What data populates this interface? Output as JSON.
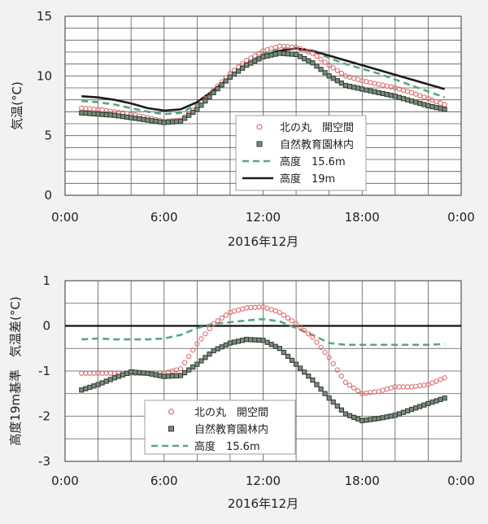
{
  "chart_data": [
    {
      "type": "line",
      "title": "",
      "xlabel": "2016年12月",
      "ylabel": "気温(°C)",
      "xlim": [
        0,
        24
      ],
      "ylim": [
        0,
        15
      ],
      "x_ticks": [
        "0:00",
        "6:00",
        "12:00",
        "18:00",
        "0:00"
      ],
      "y_ticks": [
        "0",
        "5",
        "10",
        "15"
      ],
      "grid": true,
      "legend_position": "center-right",
      "series": [
        {
          "name": "北の丸　開空間",
          "style": "markers-circle",
          "color": "#e06b6b",
          "x": [
            1,
            2,
            3,
            4,
            5,
            6,
            7,
            8,
            9,
            10,
            11,
            12,
            13,
            14,
            15,
            16,
            17,
            18,
            19,
            20,
            21,
            22,
            23
          ],
          "y": [
            7.3,
            7.2,
            7.0,
            6.8,
            6.5,
            6.2,
            6.3,
            7.4,
            8.8,
            10.2,
            11.3,
            12.1,
            12.5,
            12.4,
            11.9,
            10.9,
            10.0,
            9.6,
            9.3,
            9.0,
            8.6,
            8.1,
            7.6
          ]
        },
        {
          "name": "自然教育園林内",
          "style": "markers-square",
          "color": "#2c3a2e",
          "x": [
            1,
            2,
            3,
            4,
            5,
            6,
            7,
            8,
            9,
            10,
            11,
            12,
            13,
            14,
            15,
            16,
            17,
            18,
            19,
            20,
            21,
            22,
            23
          ],
          "y": [
            6.9,
            6.8,
            6.7,
            6.5,
            6.3,
            6.1,
            6.2,
            7.2,
            8.6,
            9.9,
            10.9,
            11.6,
            11.9,
            11.8,
            11.1,
            10.0,
            9.2,
            8.9,
            8.6,
            8.3,
            7.9,
            7.5,
            7.2
          ]
        },
        {
          "name": "高度　15.6m",
          "style": "dashed",
          "color": "#55a882",
          "x": [
            1,
            2,
            3,
            4,
            5,
            6,
            7,
            8,
            9,
            10,
            11,
            12,
            13,
            14,
            15,
            16,
            17,
            18,
            19,
            20,
            21,
            22,
            23
          ],
          "y": [
            7.9,
            7.8,
            7.6,
            7.3,
            7.0,
            6.8,
            6.9,
            7.6,
            8.7,
            9.9,
            11.0,
            11.8,
            12.3,
            12.3,
            12.1,
            11.5,
            11.0,
            10.6,
            10.2,
            9.7,
            9.2,
            8.7,
            8.2
          ]
        },
        {
          "name": "高度　19m",
          "style": "solid",
          "color": "#1c1c1c",
          "x": [
            1,
            2,
            3,
            4,
            5,
            6,
            7,
            8,
            9,
            10,
            11,
            12,
            13,
            14,
            15,
            16,
            17,
            18,
            19,
            20,
            21,
            22,
            23
          ],
          "y": [
            8.3,
            8.2,
            8.0,
            7.7,
            7.3,
            7.1,
            7.2,
            7.8,
            8.8,
            9.9,
            10.9,
            11.7,
            12.1,
            12.3,
            12.1,
            11.7,
            11.3,
            10.9,
            10.5,
            10.1,
            9.7,
            9.3,
            8.9
          ]
        }
      ]
    },
    {
      "type": "line",
      "title": "",
      "xlabel": "2016年12月",
      "ylabel": "高度19m基準　気温差(°C)",
      "xlim": [
        0,
        24
      ],
      "ylim": [
        -3,
        1
      ],
      "x_ticks": [
        "0:00",
        "6:00",
        "12:00",
        "18:00",
        "0:00"
      ],
      "y_ticks": [
        "1",
        "0",
        "-1",
        "-2",
        "-3"
      ],
      "grid": true,
      "legend_position": "bottom-center",
      "series": [
        {
          "name": "北の丸　開空間",
          "style": "markers-circle",
          "color": "#e06b6b",
          "x": [
            1,
            2,
            3,
            4,
            5,
            6,
            7,
            8,
            9,
            10,
            11,
            12,
            13,
            14,
            15,
            16,
            17,
            18,
            19,
            20,
            21,
            22,
            23
          ],
          "y": [
            -1.05,
            -1.05,
            -1.05,
            -1.05,
            -1.05,
            -1.05,
            -0.95,
            -0.4,
            0.05,
            0.3,
            0.4,
            0.42,
            0.3,
            0.05,
            -0.25,
            -0.7,
            -1.25,
            -1.5,
            -1.45,
            -1.35,
            -1.35,
            -1.3,
            -1.15
          ]
        },
        {
          "name": "自然教育園林内",
          "style": "markers-square",
          "color": "#2c3a2e",
          "x": [
            1,
            2,
            3,
            4,
            5,
            6,
            7,
            8,
            9,
            10,
            11,
            12,
            13,
            14,
            15,
            16,
            17,
            18,
            19,
            20,
            21,
            22,
            23
          ],
          "y": [
            -1.42,
            -1.3,
            -1.15,
            -1.02,
            -1.05,
            -1.12,
            -1.1,
            -0.85,
            -0.55,
            -0.38,
            -0.3,
            -0.32,
            -0.5,
            -0.85,
            -1.2,
            -1.6,
            -1.95,
            -2.1,
            -2.05,
            -1.98,
            -1.85,
            -1.72,
            -1.6
          ]
        },
        {
          "name": "高度　15.6m",
          "style": "dashed",
          "color": "#55a882",
          "x": [
            1,
            2,
            3,
            4,
            5,
            6,
            7,
            8,
            9,
            10,
            11,
            12,
            13,
            14,
            15,
            16,
            17,
            18,
            19,
            20,
            21,
            22,
            23
          ],
          "y": [
            -0.3,
            -0.28,
            -0.3,
            -0.3,
            -0.3,
            -0.28,
            -0.2,
            -0.05,
            0.05,
            0.08,
            0.12,
            0.15,
            0.1,
            -0.05,
            -0.2,
            -0.38,
            -0.42,
            -0.42,
            -0.42,
            -0.42,
            -0.42,
            -0.42,
            -0.4
          ]
        }
      ]
    }
  ]
}
